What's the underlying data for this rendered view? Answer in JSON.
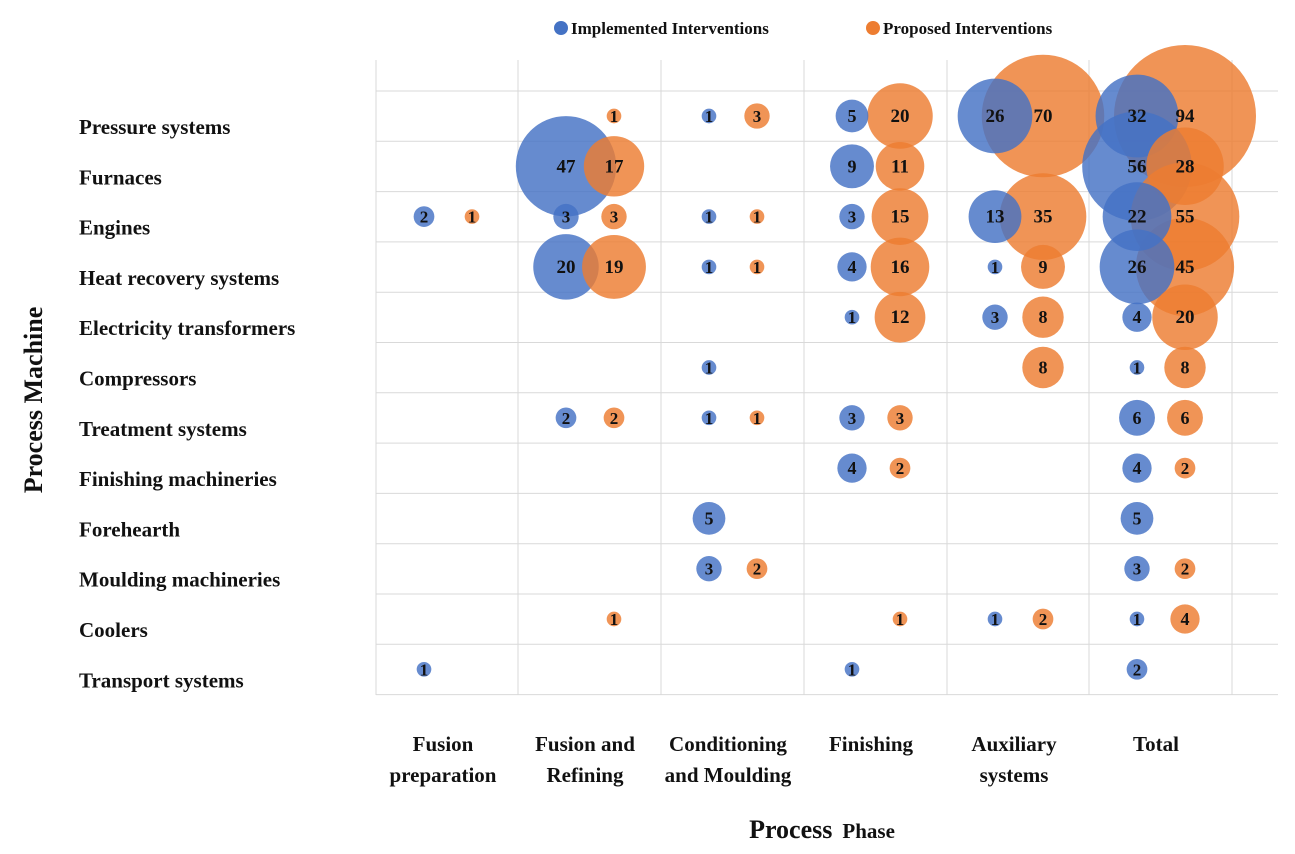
{
  "chart_data": {
    "type": "bubble-matrix",
    "title": "",
    "xlabel_main": "Process",
    "xlabel_sub": "Phase",
    "ylabel": "Process Machine",
    "legend_position": "top-center",
    "series": [
      {
        "name": "Implemented Interventions",
        "color": "#4472C4"
      },
      {
        "name": "Proposed Interventions",
        "color": "#ED7D31"
      }
    ],
    "columns": [
      [
        "Fusion",
        "preparation"
      ],
      [
        "Fusion and",
        "Refining"
      ],
      [
        "Conditioning",
        "and Moulding"
      ],
      [
        "Finishing"
      ],
      [
        "Auxiliary",
        "systems"
      ],
      [
        "Total"
      ]
    ],
    "rows": [
      "Pressure systems",
      "Furnaces",
      "Engines",
      "Heat recovery systems",
      "Electricity transformers",
      "Compressors",
      "Treatment systems",
      "Finishing machineries",
      "Forehearth",
      "Moulding machineries",
      "Coolers",
      "Transport systems"
    ],
    "implemented": [
      [
        null,
        null,
        1,
        5,
        26,
        32
      ],
      [
        null,
        47,
        null,
        9,
        null,
        56
      ],
      [
        2,
        3,
        1,
        3,
        13,
        22
      ],
      [
        null,
        20,
        1,
        4,
        1,
        26
      ],
      [
        null,
        null,
        null,
        1,
        3,
        4
      ],
      [
        null,
        null,
        1,
        null,
        null,
        1
      ],
      [
        null,
        2,
        1,
        3,
        null,
        6
      ],
      [
        null,
        null,
        null,
        4,
        null,
        4
      ],
      [
        null,
        null,
        5,
        null,
        null,
        5
      ],
      [
        null,
        null,
        3,
        null,
        null,
        3
      ],
      [
        null,
        null,
        null,
        null,
        1,
        1
      ],
      [
        1,
        null,
        null,
        1,
        null,
        2
      ]
    ],
    "proposed": [
      [
        null,
        1,
        3,
        20,
        70,
        94
      ],
      [
        null,
        17,
        null,
        11,
        null,
        28
      ],
      [
        1,
        3,
        1,
        15,
        35,
        55
      ],
      [
        null,
        19,
        1,
        16,
        9,
        45
      ],
      [
        null,
        null,
        null,
        12,
        8,
        20
      ],
      [
        null,
        null,
        null,
        null,
        8,
        8
      ],
      [
        null,
        2,
        1,
        3,
        null,
        6
      ],
      [
        null,
        null,
        null,
        2,
        null,
        2
      ],
      [
        null,
        null,
        null,
        null,
        null,
        null
      ],
      [
        null,
        null,
        2,
        null,
        null,
        2
      ],
      [
        null,
        1,
        null,
        1,
        2,
        4
      ],
      [
        null,
        null,
        null,
        null,
        null,
        null
      ]
    ]
  }
}
